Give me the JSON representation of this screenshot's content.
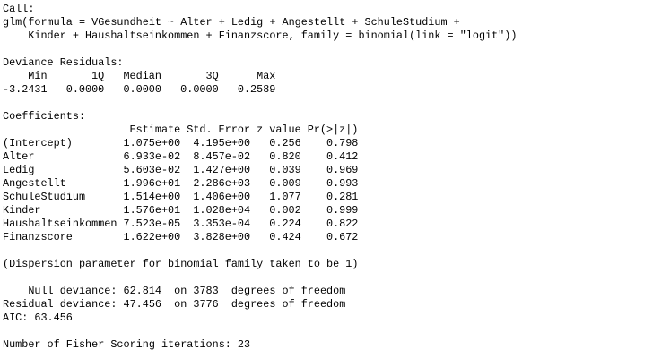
{
  "call": {
    "label": "Call:",
    "lines": [
      "glm(formula = VGesundheit ~ Alter + Ledig + Angestellt + SchuleStudium + ",
      "    Kinder + Haushaltseinkommen + Finanzscore, family = binomial(link = \"logit\"))"
    ]
  },
  "deviance_residuals": {
    "label": "Deviance Residuals: ",
    "headers": [
      "Min",
      "1Q",
      "Median",
      "3Q",
      "Max"
    ],
    "values": [
      "-3.2431",
      "0.0000",
      "0.0000",
      "0.0000",
      "0.2589"
    ]
  },
  "coefficients": {
    "label": "Coefficients:",
    "headers": [
      "Estimate",
      "Std. Error",
      "z value",
      "Pr(>|z|)"
    ],
    "rows": [
      {
        "name": "(Intercept)",
        "estimate": "1.075e+00",
        "se": "4.195e+00",
        "z": "0.256",
        "p": "0.798"
      },
      {
        "name": "Alter",
        "estimate": "6.933e-02",
        "se": "8.457e-02",
        "z": "0.820",
        "p": "0.412"
      },
      {
        "name": "Ledig",
        "estimate": "5.603e-02",
        "se": "1.427e+00",
        "z": "0.039",
        "p": "0.969"
      },
      {
        "name": "Angestellt",
        "estimate": "1.996e+01",
        "se": "2.286e+03",
        "z": "0.009",
        "p": "0.993"
      },
      {
        "name": "SchuleStudium",
        "estimate": "1.514e+00",
        "se": "1.406e+00",
        "z": "1.077",
        "p": "0.281"
      },
      {
        "name": "Kinder",
        "estimate": "1.576e+01",
        "se": "1.028e+04",
        "z": "0.002",
        "p": "0.999"
      },
      {
        "name": "Haushaltseinkommen",
        "estimate": "7.523e-05",
        "se": "3.353e-04",
        "z": "0.224",
        "p": "0.822"
      },
      {
        "name": "Finanzscore",
        "estimate": "1.622e+00",
        "se": "3.828e+00",
        "z": "0.424",
        "p": "0.672"
      }
    ]
  },
  "dispersion": "(Dispersion parameter for binomial family taken to be 1)",
  "deviance": {
    "null": "    Null deviance: 62.814  on 3783  degrees of freedom",
    "residual": "Residual deviance: 47.456  on 3776  degrees of freedom"
  },
  "aic": "AIC: 63.456",
  "fisher": "Number of Fisher Scoring iterations: 23"
}
